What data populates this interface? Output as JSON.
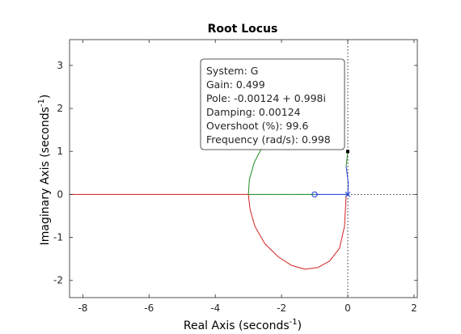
{
  "chart_data": {
    "type": "line",
    "title": "Root Locus",
    "xlabel": "Real Axis (seconds",
    "ylabel": "Imaginary Axis (seconds",
    "axis_unit_exponent": "-1",
    "axis_unit_close": ")",
    "xlim": [
      -8.4,
      2.1
    ],
    "ylim": [
      -2.4,
      3.6
    ],
    "xticks": [
      -8,
      -6,
      -4,
      -2,
      0,
      2
    ],
    "yticks": [
      -2,
      -1,
      0,
      1,
      2,
      3
    ],
    "grid": false,
    "colors": {
      "red": "#d62020",
      "green": "#1f8a1f",
      "blue": "#1f3fd0",
      "axes": "#262626",
      "reference_lines": "#000000"
    },
    "series": [
      {
        "color": "red",
        "points": [
          [
            -0.05,
            -0.05
          ],
          [
            -0.1,
            -0.75
          ],
          [
            -0.25,
            -1.25
          ],
          [
            -0.55,
            -1.55
          ],
          [
            -0.9,
            -1.7
          ],
          [
            -1.3,
            -1.74
          ],
          [
            -1.7,
            -1.65
          ],
          [
            -2.1,
            -1.45
          ],
          [
            -2.5,
            -1.15
          ],
          [
            -2.8,
            -0.75
          ],
          [
            -2.95,
            -0.35
          ],
          [
            -3.0,
            0.0
          ],
          [
            -8.4,
            0.0
          ]
        ]
      },
      {
        "color": "green",
        "points": [
          [
            -3.0,
            0.0
          ],
          [
            -2.97,
            0.35
          ],
          [
            -2.82,
            0.75
          ],
          [
            -2.55,
            1.15
          ],
          [
            -2.2,
            1.45
          ],
          [
            -1.85,
            1.62
          ],
          [
            -1.5,
            1.68
          ]
        ]
      },
      {
        "color": "green",
        "points": [
          [
            -0.05,
            0.65
          ],
          [
            -0.02,
            0.85
          ],
          [
            -0.00124,
            0.998
          ]
        ]
      },
      {
        "color": "green",
        "points": [
          [
            -3.0,
            0.0
          ],
          [
            -1.0,
            0.0
          ]
        ]
      },
      {
        "color": "blue",
        "points": [
          [
            -1.0,
            0.0
          ],
          [
            0.0,
            0.0
          ]
        ]
      },
      {
        "color": "blue",
        "points": [
          [
            0.0,
            0.0
          ],
          [
            0.02,
            0.25
          ],
          [
            -0.05,
            0.65
          ]
        ]
      }
    ],
    "zeros": [
      [
        -1.0,
        0.0
      ]
    ],
    "poles": [
      [
        0.0,
        0.0
      ]
    ],
    "selected_point": [
      -0.00124,
      0.998
    ],
    "datatip": {
      "lines": [
        "System: G",
        "Gain: 0.499",
        "Pole: -0.00124 + 0.998i",
        "Damping: 0.00124",
        "Overshoot (%): 99.6",
        "Frequency (rad/s): 0.998"
      ]
    }
  }
}
